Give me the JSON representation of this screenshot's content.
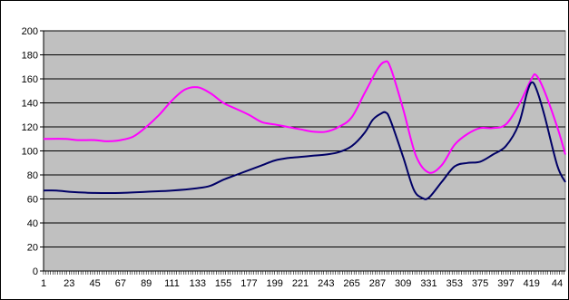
{
  "chart_data": {
    "type": "line",
    "title": "",
    "xlabel": "",
    "ylabel": "",
    "xlim": [
      1,
      448
    ],
    "ylim": [
      0,
      200
    ],
    "y_ticks": [
      0,
      20,
      40,
      60,
      80,
      100,
      120,
      140,
      160,
      180,
      200
    ],
    "x_tick_labels": [
      "1",
      "23",
      "45",
      "67",
      "89",
      "111",
      "133",
      "155",
      "177",
      "199",
      "221",
      "243",
      "265",
      "287",
      "309",
      "331",
      "353",
      "375",
      "397",
      "419",
      "44"
    ],
    "grid": true,
    "legend": "none",
    "plot_background": "#c0c0c0",
    "series": [
      {
        "color": "#ff00ff",
        "points": [
          [
            1,
            110
          ],
          [
            20,
            110
          ],
          [
            30,
            109
          ],
          [
            45,
            109
          ],
          [
            55,
            108
          ],
          [
            67,
            109
          ],
          [
            78,
            112
          ],
          [
            89,
            120
          ],
          [
            100,
            130
          ],
          [
            111,
            142
          ],
          [
            122,
            151
          ],
          [
            133,
            153
          ],
          [
            144,
            148
          ],
          [
            155,
            140
          ],
          [
            166,
            135
          ],
          [
            177,
            130
          ],
          [
            188,
            124
          ],
          [
            199,
            122
          ],
          [
            210,
            120
          ],
          [
            221,
            118
          ],
          [
            232,
            116
          ],
          [
            243,
            116
          ],
          [
            254,
            120
          ],
          [
            265,
            128
          ],
          [
            276,
            148
          ],
          [
            287,
            168
          ],
          [
            293,
            174
          ],
          [
            298,
            170
          ],
          [
            309,
            135
          ],
          [
            320,
            96
          ],
          [
            331,
            82
          ],
          [
            342,
            88
          ],
          [
            353,
            105
          ],
          [
            364,
            114
          ],
          [
            375,
            119
          ],
          [
            386,
            119
          ],
          [
            397,
            122
          ],
          [
            408,
            138
          ],
          [
            419,
            160
          ],
          [
            423,
            163
          ],
          [
            430,
            150
          ],
          [
            441,
            120
          ],
          [
            448,
            97
          ]
        ]
      },
      {
        "color": "#000066",
        "points": [
          [
            1,
            67
          ],
          [
            12,
            67
          ],
          [
            23,
            66
          ],
          [
            45,
            65
          ],
          [
            67,
            65
          ],
          [
            89,
            66
          ],
          [
            111,
            67
          ],
          [
            133,
            69
          ],
          [
            144,
            71
          ],
          [
            155,
            76
          ],
          [
            166,
            80
          ],
          [
            177,
            84
          ],
          [
            188,
            88
          ],
          [
            199,
            92
          ],
          [
            210,
            94
          ],
          [
            221,
            95
          ],
          [
            232,
            96
          ],
          [
            243,
            97
          ],
          [
            254,
            99
          ],
          [
            265,
            104
          ],
          [
            276,
            115
          ],
          [
            283,
            126
          ],
          [
            290,
            131
          ],
          [
            294,
            132
          ],
          [
            298,
            126
          ],
          [
            309,
            95
          ],
          [
            318,
            68
          ],
          [
            325,
            61
          ],
          [
            331,
            61
          ],
          [
            342,
            74
          ],
          [
            353,
            87
          ],
          [
            364,
            90
          ],
          [
            375,
            91
          ],
          [
            386,
            97
          ],
          [
            397,
            104
          ],
          [
            408,
            122
          ],
          [
            415,
            148
          ],
          [
            419,
            157
          ],
          [
            423,
            152
          ],
          [
            430,
            130
          ],
          [
            441,
            88
          ],
          [
            448,
            74
          ]
        ]
      }
    ]
  }
}
